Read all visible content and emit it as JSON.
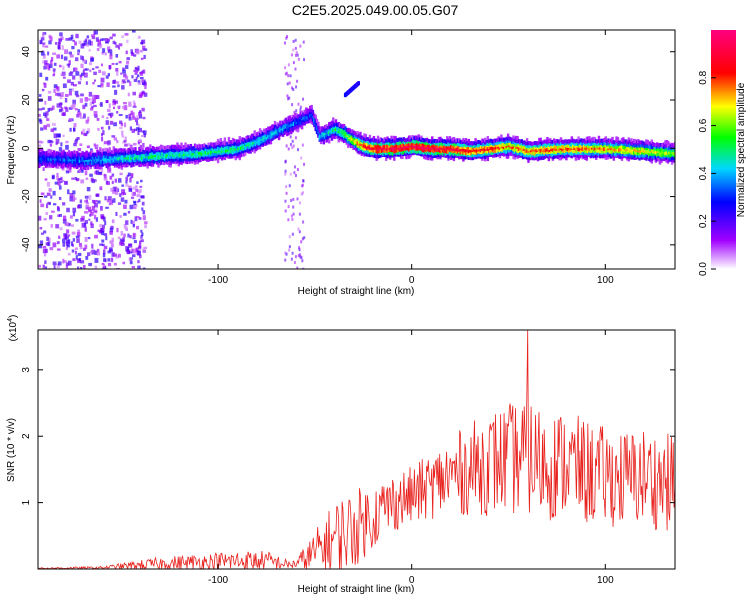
{
  "title": "C2E5.2025.049.00.05.G07",
  "chart_data": [
    {
      "type": "heatmap",
      "xlabel": "Height of straight line (km)",
      "ylabel": "Frequency (Hz)",
      "xlim": [
        -193,
        136
      ],
      "ylim": [
        -50,
        49
      ],
      "xticks": [
        -100,
        0,
        100
      ],
      "yticks": [
        -40,
        -20,
        0,
        20,
        40
      ],
      "colorbar": {
        "label": "Normalized spectral amplitude",
        "range": [
          0.0,
          1.0
        ],
        "ticks": [
          0.0,
          0.2,
          0.4,
          0.6,
          0.8
        ],
        "colormap": "rainbow (white → violet → blue → cyan → green → yellow → red → magenta)"
      },
      "ridge": {
        "description": "dominant frequency trace vs height",
        "x": [
          -193,
          -170,
          -150,
          -130,
          -110,
          -90,
          -80,
          -70,
          -60,
          -52,
          -48,
          -40,
          -35,
          -30,
          -25,
          -20,
          -10,
          0,
          10,
          20,
          30,
          40,
          50,
          60,
          80,
          100,
          120,
          136
        ],
        "y": [
          -4,
          -5,
          -4,
          -3,
          -2,
          0,
          3,
          7,
          11,
          14,
          5,
          8,
          6,
          3,
          1,
          0,
          0,
          1,
          0,
          0,
          -1,
          0,
          1,
          -1,
          0,
          0,
          -1,
          -2
        ],
        "amplitude": [
          0.3,
          0.35,
          0.45,
          0.5,
          0.5,
          0.5,
          0.45,
          0.4,
          0.35,
          0.3,
          0.4,
          0.5,
          0.55,
          0.7,
          0.85,
          0.9,
          0.95,
          0.95,
          0.95,
          0.9,
          0.85,
          0.85,
          0.75,
          0.8,
          0.8,
          0.75,
          0.7,
          0.6
        ]
      },
      "secondary_streak": {
        "x": [
          -35,
          -28
        ],
        "y": [
          22,
          27
        ]
      }
    },
    {
      "type": "line",
      "xlabel": "Height of straight line (km)",
      "ylabel": "SNR (10 * v/v)",
      "y_multiplier": "(x10",
      "y_multiplier_exp": "4",
      "y_multiplier_close": ")",
      "xlim": [
        -193,
        136
      ],
      "ylim": [
        0,
        3.6
      ],
      "xticks": [
        -100,
        0,
        100
      ],
      "yticks": [
        1,
        2,
        3
      ],
      "color": "#e8211d",
      "envelope": {
        "x": [
          -193,
          -160,
          -145,
          -130,
          -110,
          -90,
          -75,
          -62,
          -55,
          -45,
          -38,
          -30,
          -20,
          -10,
          0,
          10,
          20,
          30,
          40,
          50,
          60,
          70,
          80,
          90,
          100,
          110,
          120,
          130,
          136
        ],
        "mean": [
          0.01,
          0.02,
          0.05,
          0.08,
          0.1,
          0.12,
          0.12,
          0.06,
          0.15,
          0.35,
          0.5,
          0.6,
          0.8,
          1.0,
          1.1,
          1.25,
          1.4,
          1.5,
          1.6,
          1.65,
          1.7,
          1.55,
          1.6,
          1.45,
          1.4,
          1.35,
          1.4,
          1.3,
          1.3
        ],
        "amplitude": [
          0.01,
          0.02,
          0.06,
          0.1,
          0.13,
          0.16,
          0.16,
          0.05,
          0.2,
          0.45,
          0.6,
          0.6,
          0.5,
          0.45,
          0.45,
          0.5,
          0.6,
          0.7,
          0.8,
          0.85,
          0.9,
          0.85,
          0.8,
          0.8,
          0.75,
          0.75,
          0.75,
          0.75,
          0.75
        ]
      },
      "peak": {
        "x": 60,
        "y": 3.6
      }
    }
  ]
}
